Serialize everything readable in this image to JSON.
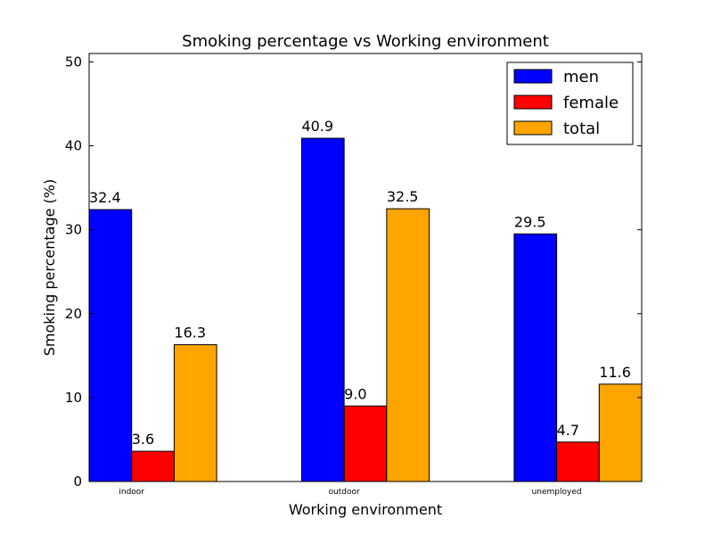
{
  "chart_data": {
    "type": "bar",
    "title": "Smoking percentage vs Working environment",
    "xlabel": "Working environment",
    "ylabel": "Smoking percentage (%)",
    "categories": [
      "indoor",
      "outdoor",
      "unemployed"
    ],
    "series": [
      {
        "name": "men",
        "color": "#0000ff",
        "values": [
          32.4,
          40.9,
          29.5
        ],
        "labels": [
          "32.4",
          "40.9",
          "29.5"
        ]
      },
      {
        "name": "female",
        "color": "#ff0000",
        "values": [
          3.6,
          9.0,
          4.7
        ],
        "labels": [
          "3.6",
          "9.0",
          "4.7"
        ]
      },
      {
        "name": "total",
        "color": "#ffa500",
        "values": [
          16.3,
          32.5,
          11.6
        ],
        "labels": [
          "16.3",
          "32.5",
          "11.6"
        ]
      }
    ],
    "ylim": [
      0,
      51
    ],
    "yticks": [
      0,
      10,
      20,
      30,
      40,
      50
    ],
    "ytick_labels": [
      "0",
      "10",
      "20",
      "30",
      "40",
      "50"
    ],
    "grid": false,
    "legend_position": "top-right"
  }
}
